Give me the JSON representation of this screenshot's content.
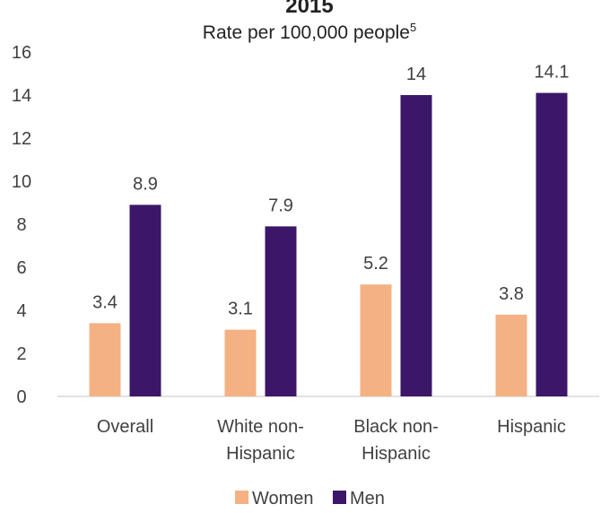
{
  "chart_data": {
    "type": "bar",
    "title": "2015",
    "subtitle": "Rate per 100,000 people",
    "subtitle_sup": "5",
    "categories": [
      [
        "Overall"
      ],
      [
        "White non-",
        "Hispanic"
      ],
      [
        "Black non-",
        "Hispanic"
      ],
      [
        "Hispanic"
      ]
    ],
    "series": [
      {
        "name": "Women",
        "color": "#F4B183",
        "values": [
          3.4,
          3.1,
          5.2,
          3.8
        ]
      },
      {
        "name": "Men",
        "color": "#3B1669",
        "values": [
          8.9,
          7.9,
          14,
          14.1
        ]
      }
    ],
    "ylim": [
      0,
      16
    ],
    "yticks": [
      0,
      2,
      4,
      6,
      8,
      10,
      12,
      14,
      16
    ],
    "grid": false,
    "legend": "bottom-center"
  }
}
